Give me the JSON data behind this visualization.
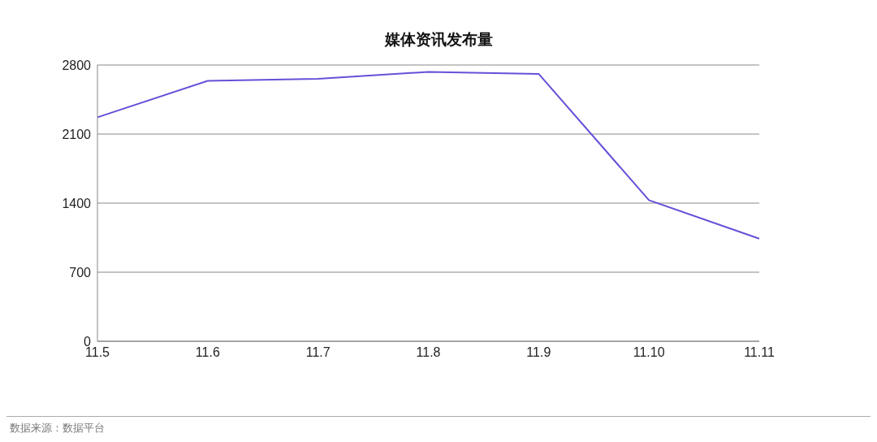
{
  "chart_data": {
    "type": "line",
    "title": "媒体资讯发布量",
    "categories": [
      "11.5",
      "11.6",
      "11.7",
      "11.8",
      "11.9",
      "11.10",
      "11.11"
    ],
    "series": [
      {
        "color": "#6650d8",
        "values": [
          2270,
          2640,
          2660,
          2730,
          2710,
          1430,
          1040
        ]
      }
    ],
    "ylim": [
      0,
      2800
    ],
    "yticks": [
      0,
      700,
      1400,
      2100,
      2800
    ],
    "grid": "y",
    "marker": "none",
    "line_style": "solid",
    "annotations": [
      "数据来源：数据平台"
    ]
  }
}
